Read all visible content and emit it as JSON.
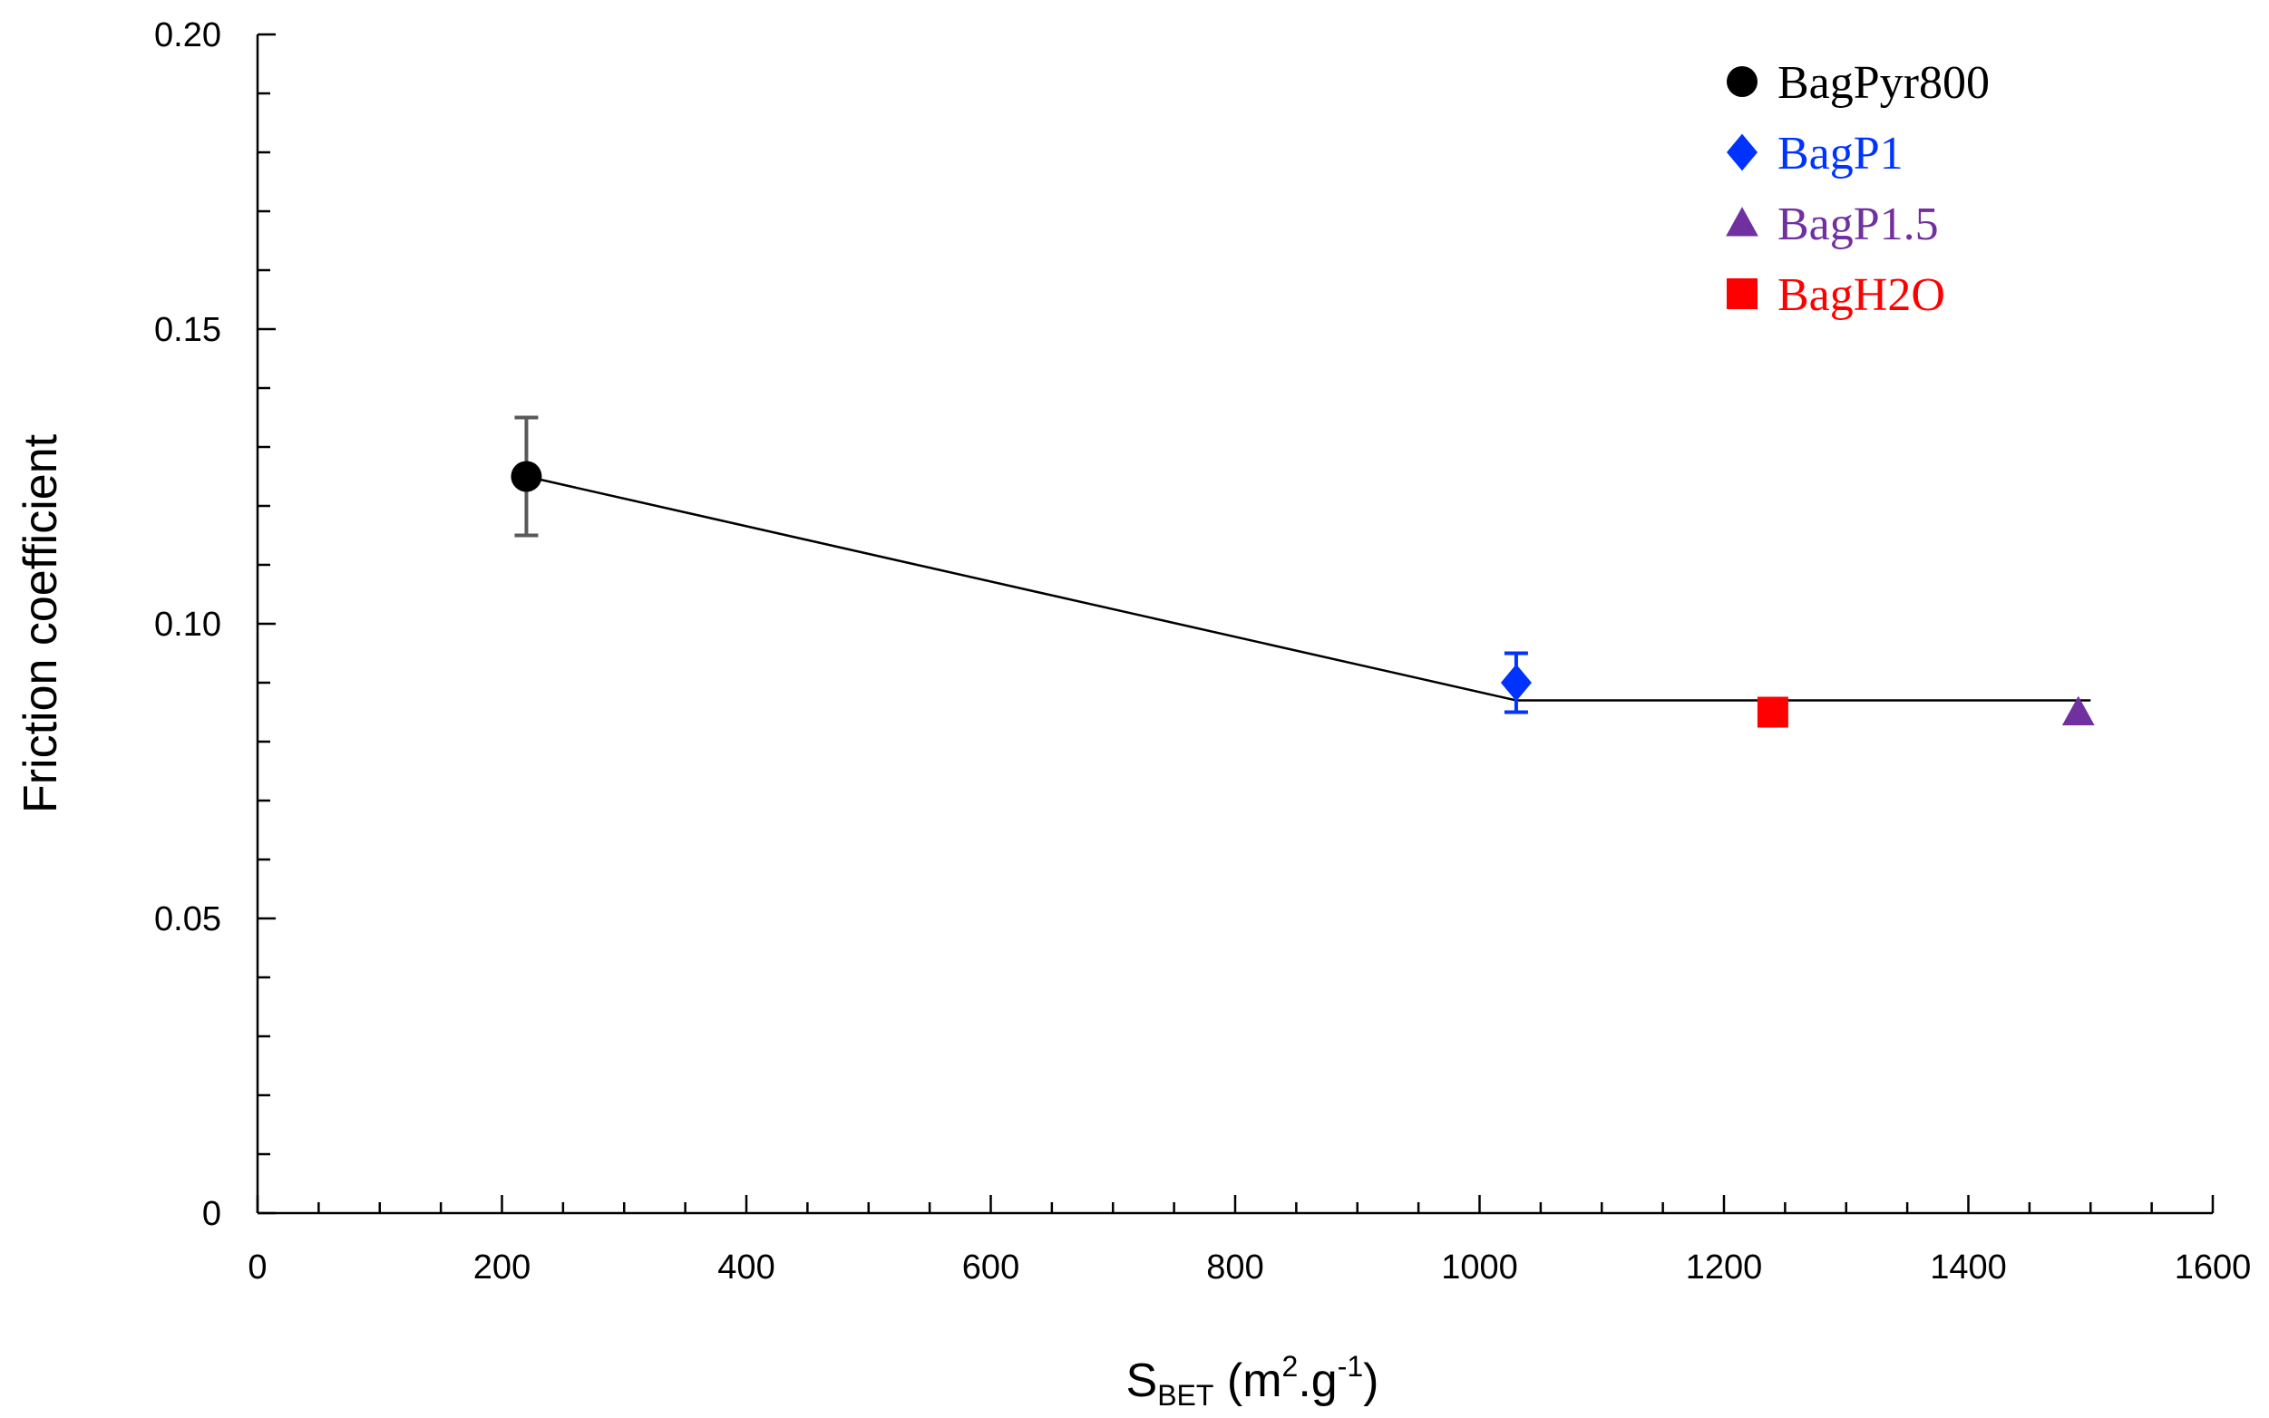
{
  "chart_data": {
    "type": "scatter",
    "title": "",
    "xlabel": {
      "main": "S",
      "subscript": "BET",
      "rest": " (m",
      "sup1": "2",
      "mid": ".g",
      "sup2": "-1",
      "end": ")"
    },
    "ylabel": "Friction coefficient",
    "xlim": [
      0,
      1600
    ],
    "ylim": [
      0,
      0.2
    ],
    "x_major_step": 200,
    "x_minor_step": 50,
    "y_major_step": 0.05,
    "y_minor_step": 0.01,
    "x_tick_labels": [
      "0",
      "200",
      "400",
      "600",
      "800",
      "1000",
      "1200",
      "1400",
      "1600"
    ],
    "y_tick_labels": [
      "0",
      "0.05",
      "0.10",
      "0.15",
      "0.20"
    ],
    "series": [
      {
        "name": "BagPyr800",
        "marker": "circle",
        "color": "#000000",
        "x": 220,
        "y": 0.125,
        "err": 0.01,
        "err_color": "#595959"
      },
      {
        "name": "BagP1",
        "marker": "diamond",
        "color": "#0033FF",
        "x": 1030,
        "y": 0.09,
        "err": 0.005,
        "err_color": "#0033FF"
      },
      {
        "name": "BagP1.5",
        "marker": "triangle",
        "color": "#7030A0",
        "x": 1490,
        "y": 0.085,
        "err": null,
        "err_color": null
      },
      {
        "name": "BagH2O",
        "marker": "square",
        "color": "#FF0000",
        "x": 1240,
        "y": 0.085,
        "err": null,
        "err_color": null
      }
    ],
    "trend_line": {
      "points": [
        [
          220,
          0.125
        ],
        [
          1030,
          0.087
        ],
        [
          1500,
          0.087
        ]
      ],
      "color": "#000000"
    },
    "legend_position": "top-right"
  }
}
